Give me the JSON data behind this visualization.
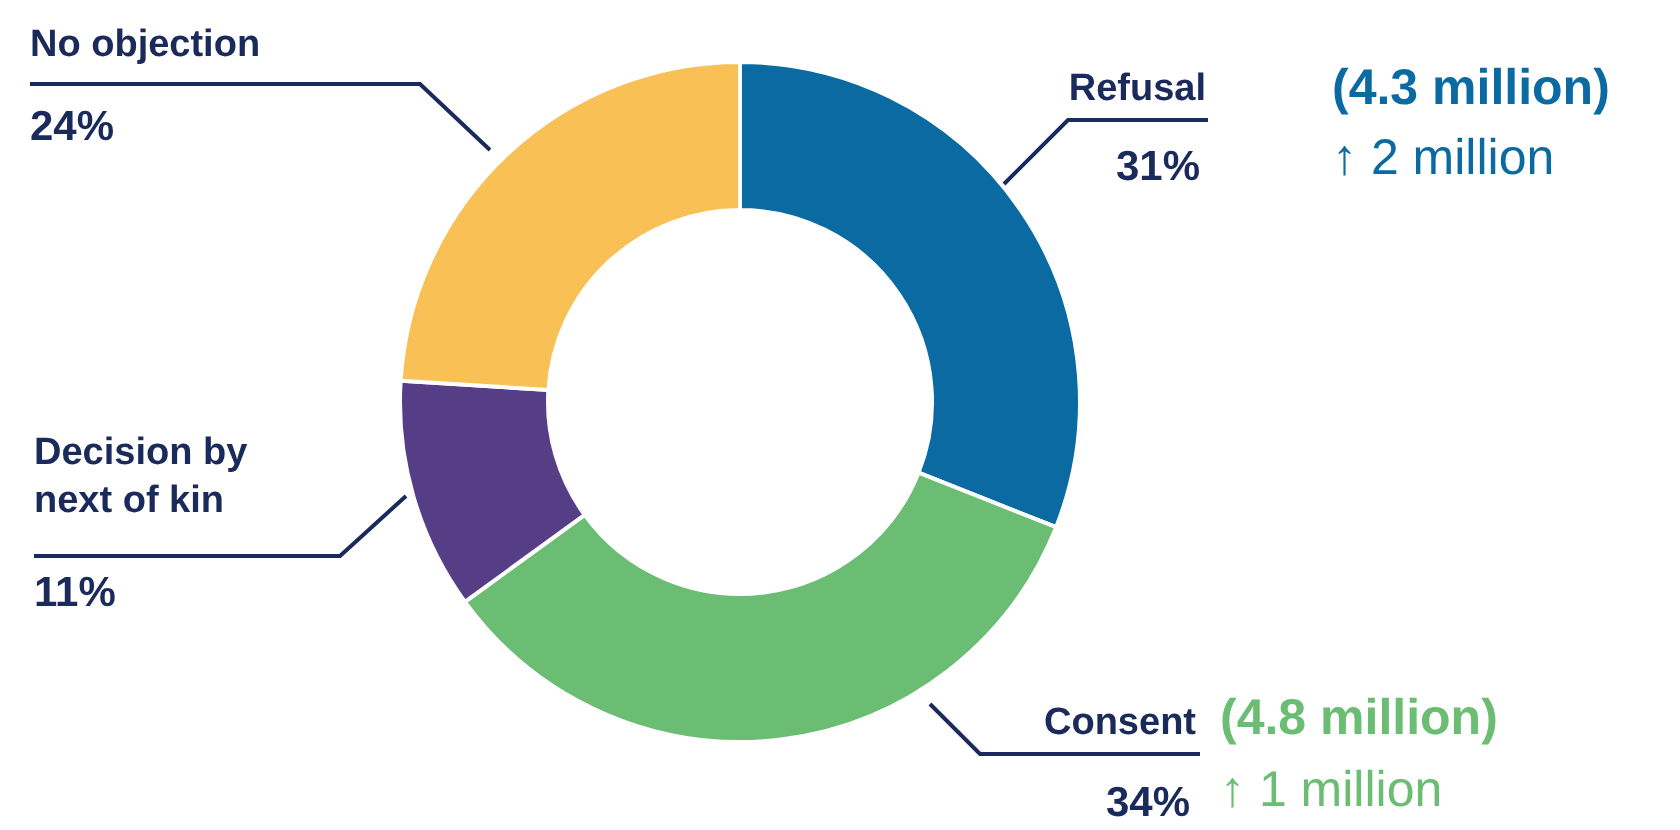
{
  "chart_data": {
    "type": "donut",
    "categories": [
      "Refusal",
      "Consent",
      "Decision by next of kin",
      "No objection"
    ],
    "values": [
      31,
      34,
      11,
      24
    ],
    "colors": [
      "#0a6aa1",
      "#6abd72",
      "#553e86",
      "#f9c155"
    ],
    "value_labels": [
      "31%",
      "34%",
      "11%",
      "24%"
    ],
    "annotations": [
      {
        "text": "(4.3 million)",
        "x": "Refusal"
      },
      {
        "text": "↑ 2 million",
        "x": "Refusal"
      },
      {
        "text": "(4.8 million)",
        "x": "Consent"
      },
      {
        "text": "↑ 1 million",
        "x": "Consent"
      }
    ]
  }
}
